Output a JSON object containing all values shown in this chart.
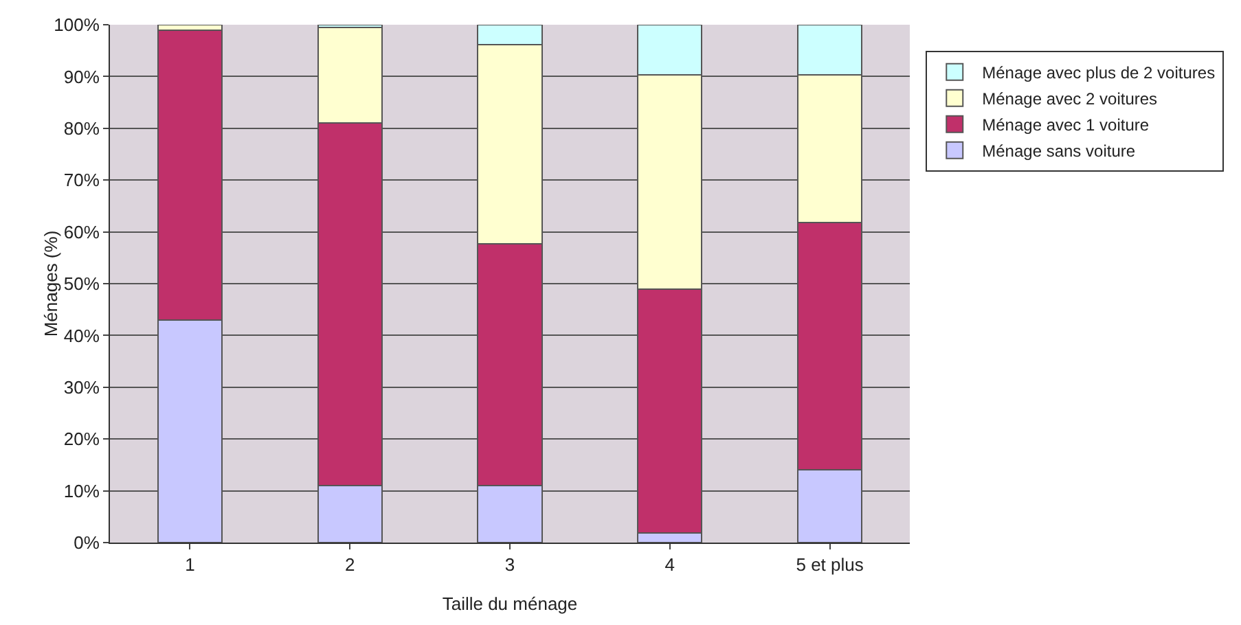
{
  "chart_data": {
    "type": "bar",
    "stacked": true,
    "xlabel": "Taille du ménage",
    "ylabel": "Ménages (%)",
    "categories": [
      "1",
      "2",
      "3",
      "4",
      "5 et plus"
    ],
    "series": [
      {
        "name": "Ménage sans voiture",
        "color": "#c8c8ff",
        "values": [
          43,
          11,
          11,
          1.8,
          14
        ]
      },
      {
        "name": "Ménage avec 1 voiture",
        "color": "#c0306a",
        "values": [
          56,
          70,
          46.7,
          47.1,
          47.8
        ]
      },
      {
        "name": "Ménage avec 2 voitures",
        "color": "#ffffd0",
        "values": [
          1,
          18.5,
          38.4,
          41.4,
          28.5
        ]
      },
      {
        "name": "Ménage avec plus de 2 voitures",
        "color": "#ccffff",
        "values": [
          null,
          0.5,
          3.9,
          9.7,
          9.7
        ]
      }
    ],
    "ylim": [
      0,
      100
    ],
    "yticks": [
      {
        "value": 0,
        "label": "0%"
      },
      {
        "value": 10,
        "label": "10%"
      },
      {
        "value": 20,
        "label": "20%"
      },
      {
        "value": 30,
        "label": "30%"
      },
      {
        "value": 40,
        "label": "40%"
      },
      {
        "value": 50,
        "label": "50%"
      },
      {
        "value": 60,
        "label": "60%"
      },
      {
        "value": 70,
        "label": "70%"
      },
      {
        "value": 80,
        "label": "80%"
      },
      {
        "value": 90,
        "label": "90%"
      },
      {
        "value": 100,
        "label": "100%"
      }
    ],
    "grid": "y",
    "legend": "right"
  }
}
